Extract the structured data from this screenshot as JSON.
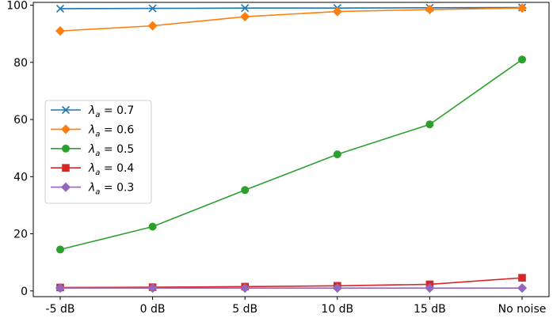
{
  "chart_data": {
    "type": "line",
    "categories": [
      "-5 dB",
      "0 dB",
      "5 dB",
      "10 dB",
      "15 dB",
      "No noise"
    ],
    "ylim": [
      -2,
      101
    ],
    "yticks": [
      0,
      20,
      40,
      60,
      80,
      100
    ],
    "grid": false,
    "legend_position": "center-left",
    "series": [
      {
        "name": "λ_a = 0.7",
        "legend_lambda": "λ",
        "legend_sub": "a",
        "legend_value": " = 0.7",
        "color": "#1f77b4",
        "marker": "x",
        "values": [
          98.8,
          98.9,
          99.0,
          99.0,
          99.1,
          99.2
        ]
      },
      {
        "name": "λ_a = 0.6",
        "legend_lambda": "λ",
        "legend_sub": "a",
        "legend_value": " = 0.6",
        "color": "#ff7f0e",
        "marker": "diamond",
        "values": [
          91.0,
          92.8,
          96.0,
          97.8,
          98.5,
          99.0
        ]
      },
      {
        "name": "λ_a = 0.5",
        "legend_lambda": "λ",
        "legend_sub": "a",
        "legend_value": " = 0.5",
        "color": "#2ca02c",
        "marker": "circle",
        "values": [
          14.5,
          22.5,
          35.3,
          47.8,
          58.3,
          81.0
        ]
      },
      {
        "name": "λ_a = 0.4",
        "legend_lambda": "λ",
        "legend_sub": "a",
        "legend_value": " = 0.4",
        "color": "#d62728",
        "marker": "square",
        "values": [
          1.2,
          1.3,
          1.5,
          1.8,
          2.3,
          4.6
        ]
      },
      {
        "name": "λ_a = 0.3",
        "legend_lambda": "λ",
        "legend_sub": "a",
        "legend_value": " = 0.3",
        "color": "#9467bd",
        "marker": "diamond",
        "values": [
          1.0,
          1.0,
          1.0,
          1.0,
          1.0,
          1.0
        ]
      }
    ]
  }
}
